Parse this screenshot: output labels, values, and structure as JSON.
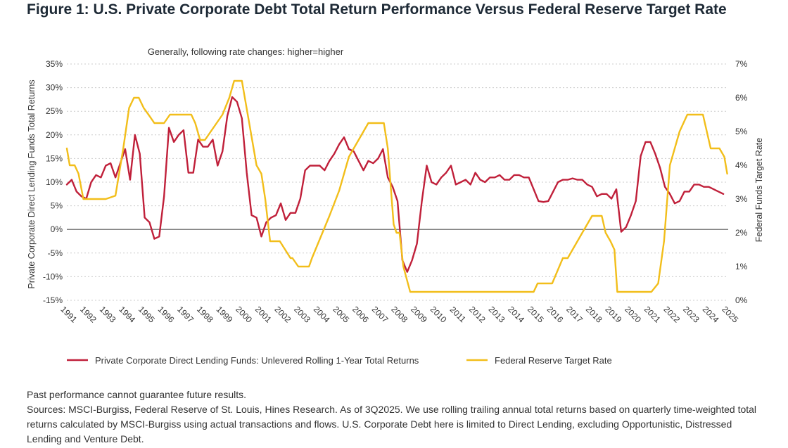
{
  "figure": {
    "title": "Figure 1: U.S. Private Corporate Debt Total Return Performance Versus Federal Reserve Target Rate"
  },
  "footnotes": {
    "disclaimer": "Past performance cannot guarantee future results.",
    "sources": "Sources: MSCI-Burgiss, Federal Reserve of St. Louis, Hines Research. As of 3Q2025. We use rolling trailing annual total returns based on quarterly time-weighted total returns calculated by MSCI-Burgiss using actual transactions and flows. U.S. Corporate Debt here is limited to Direct Lending, excluding Opportunistic, Distressed Lending and Venture Debt."
  },
  "colors": {
    "returns_series": "#c0203a",
    "fed_series": "#f2be1a",
    "zero_line": "#555555",
    "grid": "#cccccc",
    "title": "#1e2a36"
  },
  "chart_data": {
    "type": "line",
    "subtitle": "Generally, following rate changes: higher=higher",
    "xlabel": "",
    "ylabel_left": "Private Corporate Direct Lending Funds Total Returns",
    "ylabel_right": "Federal Funds Target Rate",
    "ylim_left": [
      -15,
      35
    ],
    "ylim_right": [
      0,
      7
    ],
    "xlim": [
      1991,
      2025
    ],
    "grid": "horizontal",
    "x_tick_labels": [
      "1991",
      "1992",
      "1993",
      "1994",
      "1995",
      "1996",
      "1997",
      "1998",
      "1999",
      "2000",
      "2001",
      "2002",
      "2003",
      "2004",
      "2005",
      "2006",
      "2007",
      "2008",
      "2009",
      "2010",
      "2011",
      "2012",
      "2013",
      "2014",
      "2015",
      "2016",
      "2017",
      "2018",
      "2019",
      "2020",
      "2021",
      "2022",
      "2023",
      "2024",
      "2025"
    ],
    "y_left_tick_labels": [
      "35%",
      "30%",
      "25%",
      "20%",
      "15%",
      "10%",
      "5%",
      "0%",
      "-5%",
      "-10%",
      "-15%"
    ],
    "y_left_tick_values": [
      35,
      30,
      25,
      20,
      15,
      10,
      5,
      0,
      -5,
      -10,
      -15
    ],
    "y_right_tick_labels": [
      "7%",
      "6%",
      "5%",
      "4%",
      "3%",
      "2%",
      "1%",
      "0%"
    ],
    "y_right_tick_values": [
      7,
      6,
      5,
      4,
      3,
      2,
      1,
      0
    ],
    "legend_position": "bottom",
    "series": [
      {
        "name": "Private Corporate Direct Lending Funds:  Unlevered Rolling 1-Year Total Returns",
        "axis": "left",
        "color": "#c0203a",
        "x": [
          1991,
          1991.25,
          1991.5,
          1991.75,
          1992,
          1992.25,
          1992.5,
          1992.75,
          1993,
          1993.25,
          1993.5,
          1993.75,
          1994,
          1994.25,
          1994.5,
          1994.75,
          1995,
          1995.25,
          1995.5,
          1995.75,
          1996,
          1996.25,
          1996.5,
          1996.75,
          1997,
          1997.25,
          1997.5,
          1997.75,
          1998,
          1998.25,
          1998.5,
          1998.75,
          1999,
          1999.25,
          1999.5,
          1999.75,
          2000,
          2000.25,
          2000.5,
          2000.75,
          2001,
          2001.25,
          2001.5,
          2001.75,
          2002,
          2002.25,
          2002.5,
          2002.75,
          2003,
          2003.25,
          2003.5,
          2003.75,
          2004,
          2004.25,
          2004.5,
          2004.75,
          2005,
          2005.25,
          2005.5,
          2005.75,
          2006,
          2006.25,
          2006.5,
          2006.75,
          2007,
          2007.25,
          2007.5,
          2007.75,
          2008,
          2008.25,
          2008.5,
          2008.75,
          2009,
          2009.25,
          2009.5,
          2009.75,
          2010,
          2010.25,
          2010.5,
          2010.75,
          2011,
          2011.25,
          2011.5,
          2011.75,
          2012,
          2012.25,
          2012.5,
          2012.75,
          2013,
          2013.25,
          2013.5,
          2013.75,
          2014,
          2014.25,
          2014.5,
          2014.75,
          2015,
          2015.25,
          2015.5,
          2015.75,
          2016,
          2016.25,
          2016.5,
          2016.75,
          2017,
          2017.25,
          2017.5,
          2017.75,
          2018,
          2018.25,
          2018.5,
          2018.75,
          2019,
          2019.25,
          2019.5,
          2019.75,
          2020,
          2020.25,
          2020.5,
          2020.75,
          2021,
          2021.25,
          2021.5,
          2021.75,
          2022,
          2022.25,
          2022.5,
          2022.75,
          2023,
          2023.25,
          2023.5,
          2023.75,
          2024,
          2024.25,
          2024.5,
          2024.75
        ],
        "values": [
          9.5,
          10.5,
          8,
          7,
          6.5,
          10,
          11.5,
          11,
          13.5,
          14,
          11,
          14,
          17,
          10.5,
          20,
          16,
          2.5,
          1.5,
          -2,
          -1.5,
          7,
          21.5,
          18.5,
          20,
          21,
          12,
          12,
          19,
          17.5,
          17.5,
          19,
          13.5,
          16.5,
          24,
          28,
          27,
          23.5,
          12,
          3,
          2.5,
          -1.5,
          1.5,
          2.5,
          3,
          5.5,
          2,
          3.5,
          3.5,
          6.5,
          12.5,
          13.5,
          13.5,
          13.5,
          12.5,
          14.5,
          16,
          18,
          19.5,
          17,
          16.5,
          14.5,
          12.5,
          14.5,
          14,
          15,
          17,
          11,
          9,
          6,
          -6.5,
          -9,
          -6.5,
          -3,
          6,
          13.5,
          10,
          9.5,
          11,
          12,
          13.5,
          9.5,
          10,
          10.5,
          9.5,
          12,
          10.5,
          10,
          11,
          11,
          11.5,
          10.5,
          10.5,
          11.5,
          11.5,
          11,
          11,
          8.5,
          6,
          5.8,
          6,
          8,
          10,
          10.5,
          10.5,
          10.8,
          10.5,
          10.5,
          9.5,
          9,
          7,
          7.5,
          7.5,
          6.5,
          8.5,
          -0.5,
          0.5,
          3,
          6,
          15.5,
          18.5,
          18.5,
          16,
          13,
          9,
          7.5,
          5.5,
          6,
          8,
          8,
          9.5,
          9.5,
          9,
          9,
          8.5,
          8,
          7.5
        ]
      },
      {
        "name": "Federal Reserve Target Rate",
        "axis": "right",
        "color": "#f2be1a",
        "x": [
          1991,
          1991.15,
          1991.4,
          1991.6,
          1991.85,
          1992.1,
          1992.4,
          1992.7,
          1993,
          1993.5,
          1993.9,
          1994.2,
          1994.45,
          1994.7,
          1994.95,
          1995.2,
          1995.5,
          1995.9,
          1996,
          1996.3,
          1997.4,
          1997.6,
          1997.85,
          1998.1,
          1998.7,
          1999,
          1999.35,
          1999.6,
          1999.75,
          2000,
          2000.45,
          2000.75,
          2001,
          2001.2,
          2001.45,
          2001.7,
          2001.95,
          2002.5,
          2002.6,
          2002.9,
          2003.45,
          2003.6,
          2004.5,
          2005,
          2005.5,
          2006.5,
          2007.3,
          2007.5,
          2007.8,
          2007.95,
          2008.1,
          2008.3,
          2008.65,
          2008.95,
          2015,
          2015.2,
          2015.95,
          2016.5,
          2016.75,
          2017.5,
          2018,
          2018.5,
          2018.7,
          2018.95,
          2019.15,
          2019.3,
          2019.55,
          2021.05,
          2021.4,
          2021.7,
          2022,
          2022.25,
          2022.5,
          2022.9,
          2023.5,
          2023.7,
          2024.1,
          2024.55,
          2024.8,
          2024.95
        ],
        "values": [
          4.5,
          4,
          4,
          3.75,
          3,
          3,
          3,
          3,
          3,
          3.1,
          4.5,
          5.7,
          6,
          6,
          5.7,
          5.5,
          5.25,
          5.25,
          5.25,
          5.5,
          5.5,
          5.25,
          4.75,
          4.75,
          5.25,
          5.5,
          6,
          6.5,
          6.5,
          6.5,
          5,
          4,
          3.75,
          3,
          1.75,
          1.75,
          1.75,
          1.25,
          1.25,
          1,
          1,
          1.25,
          2.5,
          3.25,
          4.25,
          5.25,
          5.25,
          4.5,
          2.25,
          2,
          2,
          1,
          0.25,
          0.25,
          0.25,
          0.5,
          0.5,
          1.25,
          1.25,
          2,
          2.5,
          2.5,
          2,
          1.75,
          1.5,
          0.25,
          0.25,
          0.25,
          0.5,
          1.75,
          4,
          4.5,
          5,
          5.5,
          5.5,
          5.5,
          4.5,
          4.5,
          4.25,
          3.75
        ]
      }
    ]
  }
}
